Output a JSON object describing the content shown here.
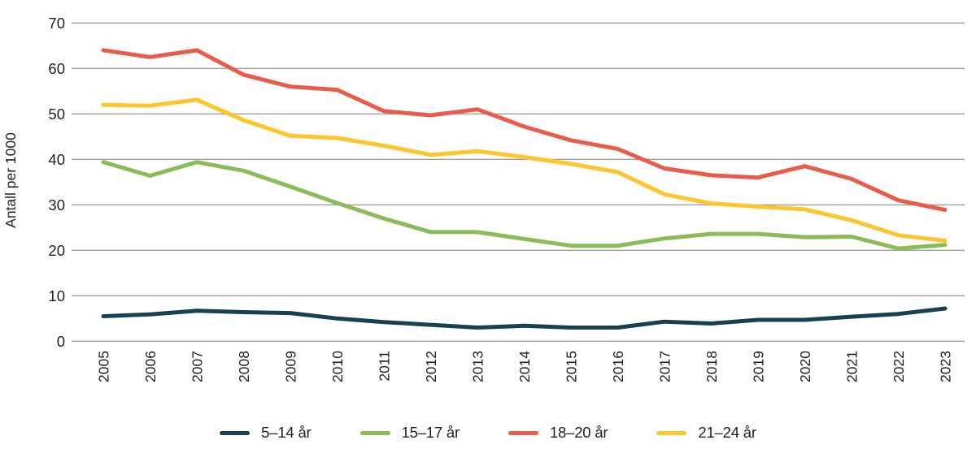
{
  "chart_data": {
    "type": "line",
    "title": "",
    "xlabel": "",
    "ylabel": "Antall per 1000",
    "x": [
      2005,
      2006,
      2007,
      2008,
      2009,
      2010,
      2011,
      2012,
      2013,
      2014,
      2015,
      2016,
      2017,
      2018,
      2019,
      2020,
      2021,
      2022,
      2023
    ],
    "ylim": [
      0,
      70
    ],
    "yticks": [
      0,
      10,
      20,
      30,
      40,
      50,
      60,
      70
    ],
    "grid": "horizontal",
    "legend_position": "bottom",
    "series": [
      {
        "name": "5–14 år",
        "color": "#16424f",
        "values": [
          5.5,
          5.9,
          6.7,
          6.4,
          6.2,
          5.0,
          4.2,
          3.6,
          3.0,
          3.4,
          3.0,
          3.0,
          4.3,
          3.9,
          4.7,
          4.7,
          5.4,
          6.0,
          7.2
        ]
      },
      {
        "name": "15–17 år",
        "color": "#8abc59",
        "values": [
          39.4,
          36.4,
          39.4,
          37.5,
          34.0,
          30.4,
          27.0,
          24.0,
          24.0,
          22.5,
          21.0,
          21.0,
          22.6,
          23.6,
          23.6,
          22.9,
          23.0,
          20.4,
          21.2
        ]
      },
      {
        "name": "18–20 år",
        "color": "#e95c4b",
        "values": [
          64.0,
          62.5,
          64.0,
          58.6,
          56.0,
          55.3,
          50.6,
          49.7,
          51.0,
          47.2,
          44.2,
          42.3,
          38.0,
          36.5,
          36.0,
          38.5,
          35.7,
          31.0,
          28.9
        ]
      },
      {
        "name": "21–24 år",
        "color": "#fdc62d",
        "values": [
          52.0,
          51.8,
          53.1,
          48.6,
          45.2,
          44.7,
          43.0,
          41.0,
          41.8,
          40.5,
          39.0,
          37.2,
          32.3,
          30.3,
          29.6,
          29.0,
          26.6,
          23.3,
          22.1
        ]
      }
    ],
    "colors": {
      "grid": "#8c8c8c",
      "text": "#231f20",
      "background": "#ffffff"
    }
  }
}
